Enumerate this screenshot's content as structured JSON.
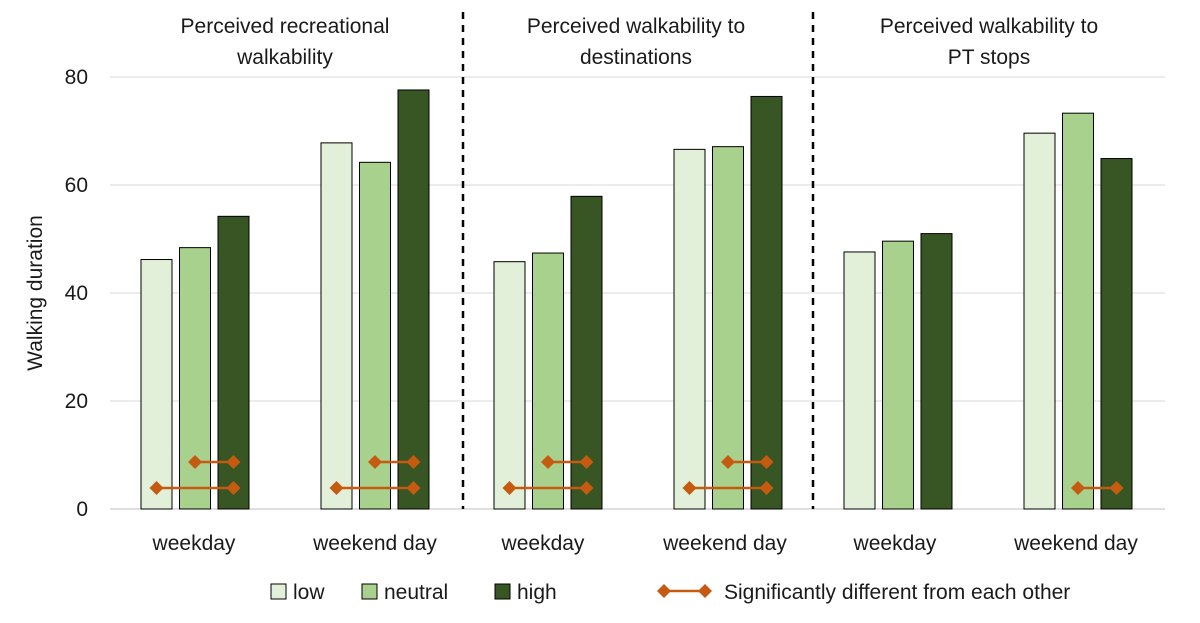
{
  "chart_data": {
    "type": "bar",
    "ylabel": "Walking duration",
    "ylim": [
      0,
      80
    ],
    "yticks": [
      "0",
      "20",
      "40",
      "60",
      "80"
    ],
    "panels": [
      {
        "title_lines": [
          "Perceived recreational",
          "walkability"
        ],
        "groups": [
          {
            "label": "weekday",
            "values": [
              46.2,
              48.4,
              54.2
            ],
            "sig_pairs": [
              {
                "from": 1,
                "to": 2,
                "level": 2
              },
              {
                "from": 0,
                "to": 2,
                "level": 1
              }
            ]
          },
          {
            "label": "weekend day",
            "values": [
              67.8,
              64.2,
              77.6
            ],
            "sig_pairs": [
              {
                "from": 1,
                "to": 2,
                "level": 2
              },
              {
                "from": 0,
                "to": 2,
                "level": 1
              }
            ]
          }
        ]
      },
      {
        "title_lines": [
          "Perceived walkability to",
          "destinations"
        ],
        "groups": [
          {
            "label": "weekday",
            "values": [
              45.8,
              47.4,
              57.9
            ],
            "sig_pairs": [
              {
                "from": 1,
                "to": 2,
                "level": 2
              },
              {
                "from": 0,
                "to": 2,
                "level": 1
              }
            ]
          },
          {
            "label": "weekend day",
            "values": [
              66.6,
              67.1,
              76.4
            ],
            "sig_pairs": [
              {
                "from": 1,
                "to": 2,
                "level": 2
              },
              {
                "from": 0,
                "to": 2,
                "level": 1
              }
            ]
          }
        ]
      },
      {
        "title_lines": [
          "Perceived walkability to",
          "PT stops"
        ],
        "groups": [
          {
            "label": "weekday",
            "values": [
              47.6,
              49.6,
              51.0
            ],
            "sig_pairs": []
          },
          {
            "label": "weekend day",
            "values": [
              69.6,
              73.3,
              64.9
            ],
            "sig_pairs": [
              {
                "from": 1,
                "to": 2,
                "level": 1
              }
            ]
          }
        ]
      }
    ],
    "series": [
      {
        "name": "low",
        "color": "#e2efd9"
      },
      {
        "name": "neutral",
        "color": "#a9d18e"
      },
      {
        "name": "high",
        "color": "#375623"
      }
    ],
    "significance_legend": "Significantly different from each other",
    "significance_color": "#c55a11",
    "legend_position": "bottom"
  }
}
